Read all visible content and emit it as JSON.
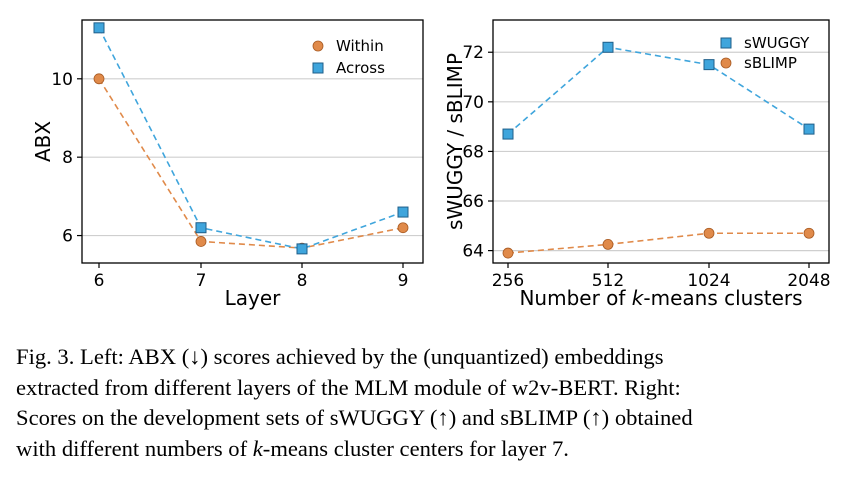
{
  "chart_data": [
    {
      "type": "line",
      "title": "",
      "xlabel": "Layer",
      "ylabel": "ABX",
      "x": [
        6,
        7,
        8,
        9
      ],
      "xticks": [
        "6",
        "7",
        "8",
        "9"
      ],
      "ylim": [
        5.3,
        11.5
      ],
      "yticks": [
        6,
        8,
        10
      ],
      "ytick_labels": [
        "6",
        "8",
        "10"
      ],
      "grid": "horizontal",
      "legend": "top-right",
      "series": [
        {
          "name": "Within",
          "values": [
            10.0,
            5.85,
            5.68,
            6.2
          ],
          "color": "#e08a4a",
          "marker": "circle"
        },
        {
          "name": "Across",
          "values": [
            11.3,
            6.2,
            5.66,
            6.6
          ],
          "color": "#3fa5dc",
          "marker": "square"
        }
      ]
    },
    {
      "type": "line",
      "title": "",
      "xlabel_parts": [
        "Number of ",
        "k",
        "-means clusters"
      ],
      "ylabel": "sWUGGY / sBLIMP",
      "categories": [
        "256",
        "512",
        "1024",
        "2048"
      ],
      "ylim": [
        63.5,
        73.3
      ],
      "yticks": [
        64,
        66,
        68,
        70,
        72
      ],
      "ytick_labels": [
        "64",
        "66",
        "68",
        "70",
        "72"
      ],
      "grid": "horizontal",
      "legend": "top-right",
      "series": [
        {
          "name": "sWUGGY",
          "values": [
            68.7,
            72.2,
            71.5,
            68.9
          ],
          "color": "#3fa5dc",
          "marker": "square"
        },
        {
          "name": "sBLIMP",
          "values": [
            63.9,
            64.25,
            64.7,
            64.7
          ],
          "color": "#e08a4a",
          "marker": "circle"
        }
      ]
    }
  ],
  "caption": {
    "lines": [
      "Fig. 3.   Left: ABX (↓) scores achieved by the (unquantized) embeddings",
      "extracted from different layers of the MLM module of w2v-BERT. Right:",
      "Scores on the development sets of sWUGGY (↑) and sBLIMP (↑) obtained",
      [
        "with different numbers of ",
        "k",
        "-means cluster centers for layer 7."
      ]
    ]
  }
}
